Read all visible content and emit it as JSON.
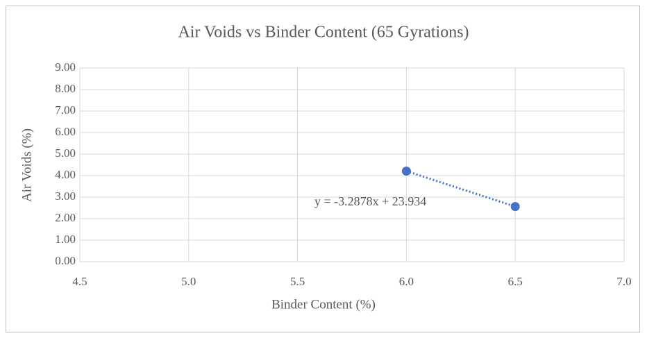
{
  "chart_data": {
    "type": "scatter",
    "title": "Air Voids vs Binder Content (65 Gyrations)",
    "x_label": "Binder Content (%)",
    "y_label": "Air Voids (%)",
    "annotation": "y = -3.2878x + 23.934",
    "series": [
      {
        "name": "Air Voids",
        "color": "#4472c4",
        "x": [
          6.0,
          6.5
        ],
        "values": [
          4.21,
          2.56
        ]
      }
    ],
    "trendline": {
      "style": "dotted",
      "color": "#4472c4"
    },
    "xlim": [
      4.5,
      7.0
    ],
    "xticks": [
      4.5,
      {
        "value": 5,
        "label": "5.0"
      },
      5.5,
      {
        "value": 6,
        "label": "6.0"
      },
      6.5,
      {
        "value": 7,
        "label": "7.0"
      }
    ],
    "ylim": [
      0,
      9
    ],
    "yticks": [
      {
        "value": 0,
        "label": "0.00"
      },
      {
        "value": 1,
        "label": "1.00"
      },
      {
        "value": 2,
        "label": "2.00"
      },
      {
        "value": 3,
        "label": "3.00"
      },
      {
        "value": 4,
        "label": "4.00"
      },
      {
        "value": 5,
        "label": "5.00"
      },
      {
        "value": 6,
        "label": "6.00"
      },
      {
        "value": 7,
        "label": "7.00"
      },
      {
        "value": 8,
        "label": "8.00"
      },
      {
        "value": 9,
        "label": "9.00"
      }
    ],
    "grid": true
  }
}
